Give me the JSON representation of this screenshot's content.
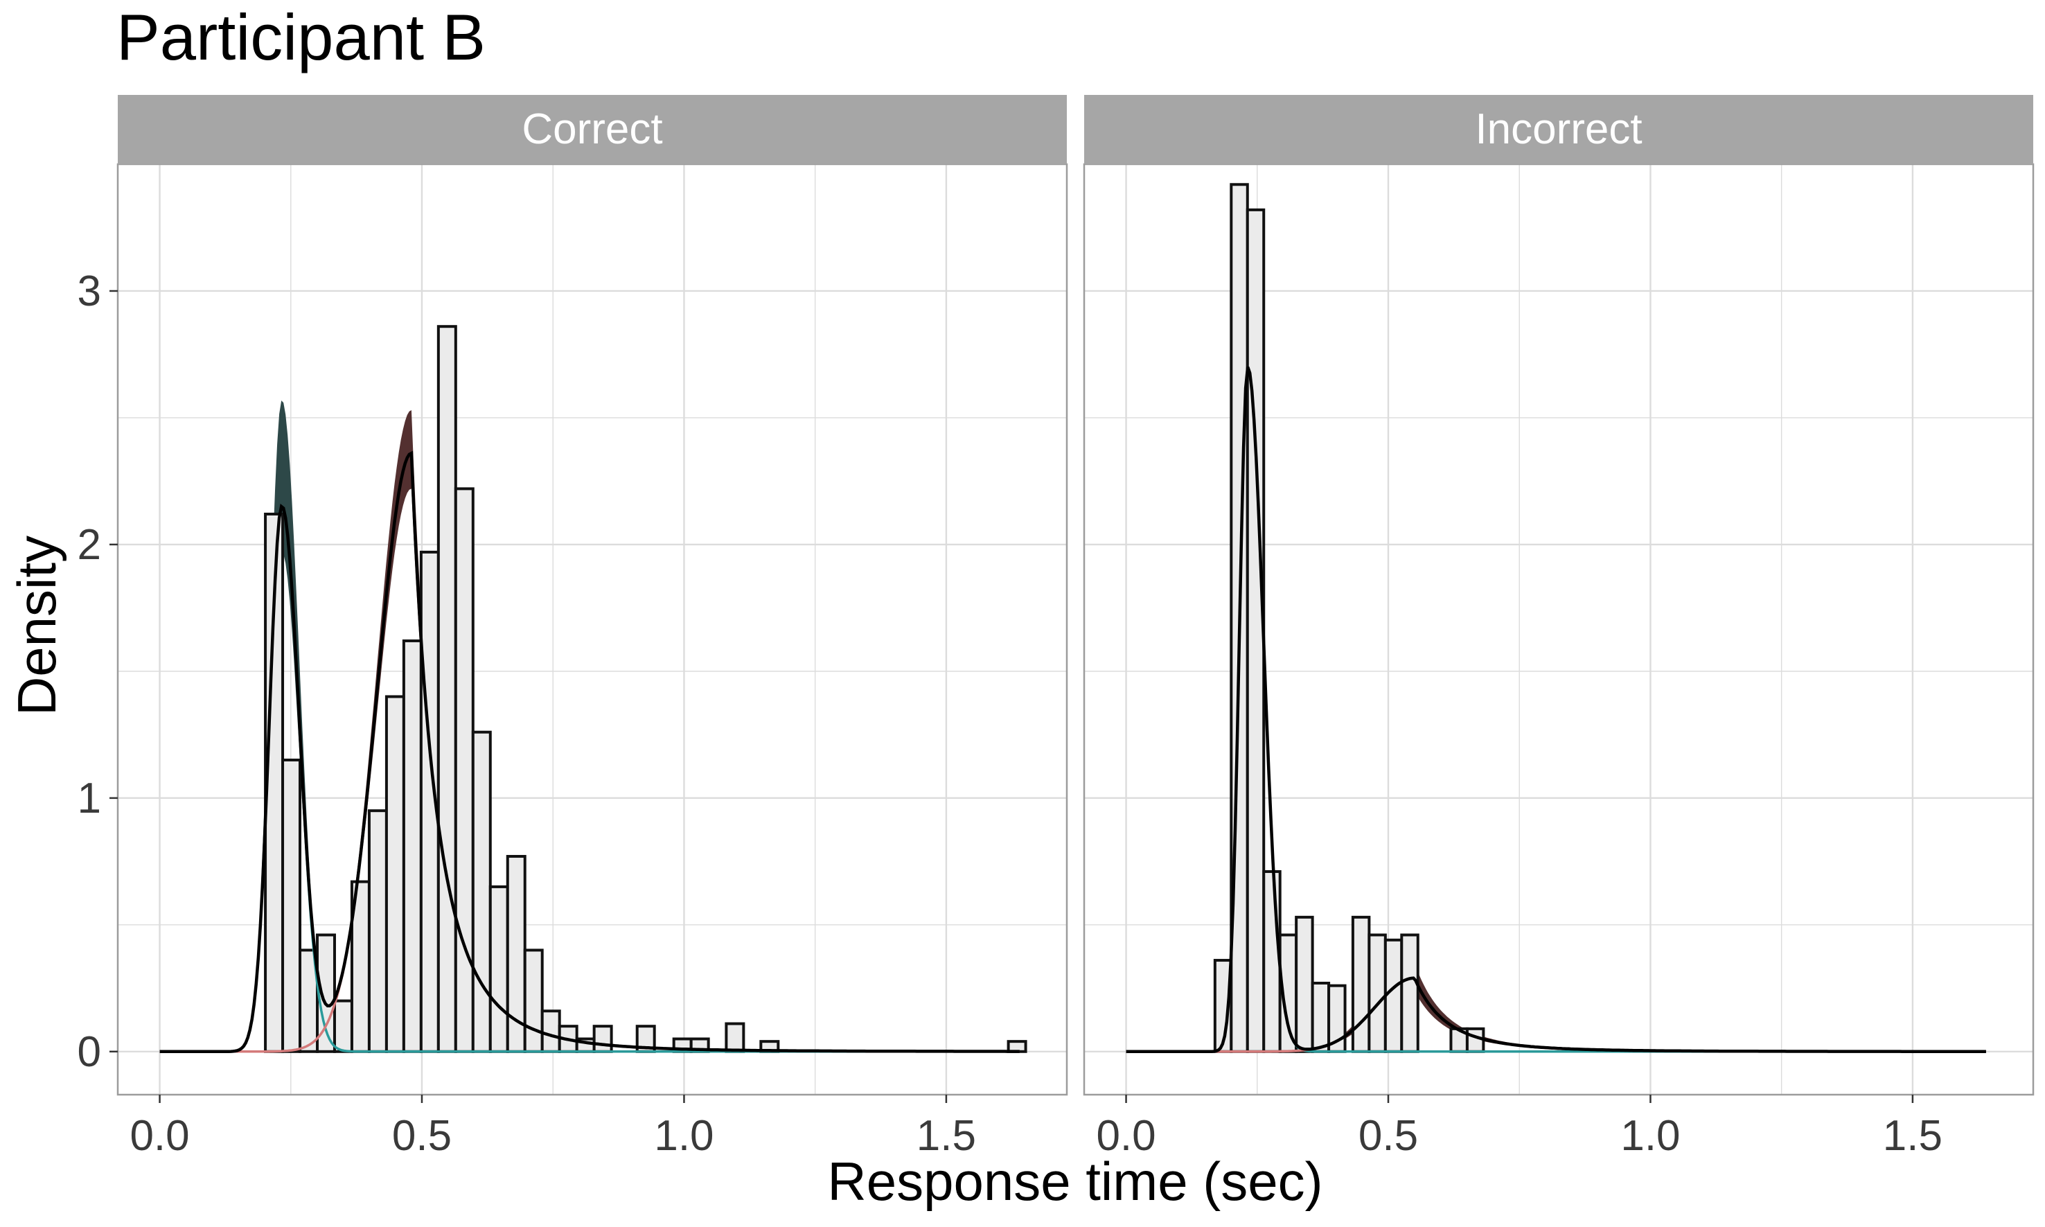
{
  "title": "Participant B",
  "xlabel": "Response time (sec)",
  "ylabel": "Density",
  "colors": {
    "strip_bg": "#a6a6a6",
    "strip_text": "#ffffff",
    "bar_fill": "#ebebeb",
    "bar_stroke": "#111111",
    "fast_band": "#223e3e",
    "fast_line": "#2a9a9a",
    "slow_band": "#4a2525",
    "slow_line": "#d47a7a",
    "total_line": "#000000",
    "grid": "#dcdcdc",
    "panel_border": "#9c9c9c"
  },
  "chart_data": [
    {
      "type": "bar",
      "panel": "Correct",
      "xlim": [
        -0.08,
        1.73
      ],
      "ylim": [
        -0.17,
        3.5
      ],
      "x_ticks": [
        0.0,
        0.5,
        1.0,
        1.5
      ],
      "x_tick_labels": [
        "0.0",
        "0.5",
        "1.0",
        "1.5"
      ],
      "y_ticks": [
        0,
        1,
        2,
        3
      ],
      "y_tick_labels": [
        "0",
        "1",
        "2",
        "3"
      ],
      "grid": true,
      "bin_width": 0.033,
      "histogram": [
        {
          "x": 0.218,
          "density": 2.12
        },
        {
          "x": 0.251,
          "density": 1.15
        },
        {
          "x": 0.284,
          "density": 0.4
        },
        {
          "x": 0.317,
          "density": 0.46
        },
        {
          "x": 0.35,
          "density": 0.2
        },
        {
          "x": 0.383,
          "density": 0.67
        },
        {
          "x": 0.416,
          "density": 0.95
        },
        {
          "x": 0.449,
          "density": 1.4
        },
        {
          "x": 0.482,
          "density": 1.62
        },
        {
          "x": 0.515,
          "density": 1.97
        },
        {
          "x": 0.548,
          "density": 2.86
        },
        {
          "x": 0.581,
          "density": 2.22
        },
        {
          "x": 0.614,
          "density": 1.26
        },
        {
          "x": 0.647,
          "density": 0.65
        },
        {
          "x": 0.68,
          "density": 0.77
        },
        {
          "x": 0.713,
          "density": 0.4
        },
        {
          "x": 0.746,
          "density": 0.16
        },
        {
          "x": 0.779,
          "density": 0.1
        },
        {
          "x": 0.812,
          "density": 0.05
        },
        {
          "x": 0.845,
          "density": 0.1
        },
        {
          "x": 0.927,
          "density": 0.1
        },
        {
          "x": 0.997,
          "density": 0.05
        },
        {
          "x": 1.03,
          "density": 0.05
        },
        {
          "x": 1.097,
          "density": 0.11
        },
        {
          "x": 1.163,
          "density": 0.04
        },
        {
          "x": 1.635,
          "density": 0.04
        }
      ],
      "fast_component": {
        "peak_x": 0.233,
        "amp": 2.15,
        "sd_left": 0.024,
        "sd_right": 0.033,
        "band_amp_upper": 2.57,
        "band_amp_lower": 1.97
      },
      "slow_component": {
        "mode": 0.48,
        "amp": 2.36,
        "sd_left": 0.065,
        "tail_scale": 0.095,
        "band_amp_upper": 2.53,
        "band_amp_lower": 2.22
      }
    },
    {
      "type": "bar",
      "panel": "Incorrect",
      "xlim": [
        -0.08,
        1.73
      ],
      "ylim": [
        -0.17,
        3.5
      ],
      "x_ticks": [
        0.0,
        0.5,
        1.0,
        1.5
      ],
      "x_tick_labels": [
        "0.0",
        "0.5",
        "1.0",
        "1.5"
      ],
      "y_ticks": [
        0,
        1,
        2,
        3
      ],
      "grid": true,
      "bin_width": 0.031,
      "histogram": [
        {
          "x": 0.185,
          "density": 0.36
        },
        {
          "x": 0.216,
          "density": 3.42
        },
        {
          "x": 0.247,
          "density": 3.32
        },
        {
          "x": 0.278,
          "density": 0.71
        },
        {
          "x": 0.309,
          "density": 0.46
        },
        {
          "x": 0.34,
          "density": 0.53
        },
        {
          "x": 0.371,
          "density": 0.27
        },
        {
          "x": 0.402,
          "density": 0.26
        },
        {
          "x": 0.448,
          "density": 0.53
        },
        {
          "x": 0.479,
          "density": 0.46
        },
        {
          "x": 0.51,
          "density": 0.44
        },
        {
          "x": 0.541,
          "density": 0.46
        },
        {
          "x": 0.635,
          "density": 0.09
        },
        {
          "x": 0.666,
          "density": 0.09
        }
      ],
      "fast_component": {
        "peak_x": 0.232,
        "amp": 2.7,
        "sd_left": 0.016,
        "sd_right": 0.03,
        "band_amp_upper": 2.95,
        "band_amp_lower": 2.5
      },
      "slow_component": {
        "mode": 0.55,
        "amp": 0.29,
        "sd_left": 0.075,
        "tail_scale": 0.12,
        "band_amp_upper": 0.35,
        "band_amp_lower": 0.24
      }
    }
  ]
}
